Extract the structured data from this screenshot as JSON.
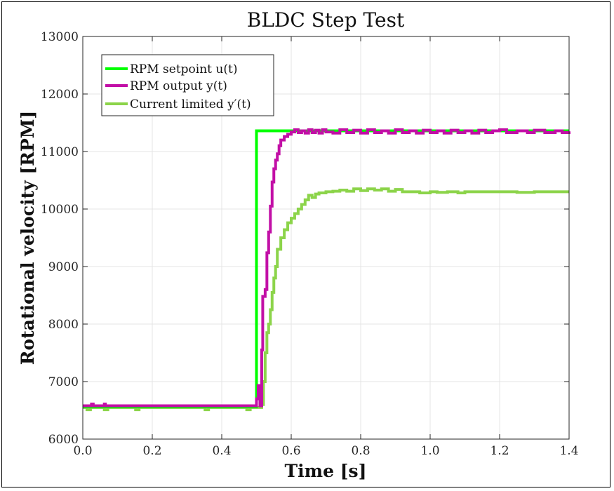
{
  "chart_data": {
    "type": "line",
    "title": "BLDC Step Test",
    "xlabel": "Time [s]",
    "ylabel": "Rotational velocity [RPM]",
    "xlim": [
      0,
      1.4
    ],
    "ylim": [
      6000,
      13000
    ],
    "xticks": [
      "0.0",
      "0.2",
      "0.4",
      "0.6",
      "0.8",
      "1.0",
      "1.2",
      "1.4"
    ],
    "yticks": [
      "6000",
      "7000",
      "8000",
      "9000",
      "10000",
      "11000",
      "12000",
      "13000"
    ],
    "grid": true,
    "legend_position": "top-left",
    "series": [
      {
        "name": "RPM setpoint u(t)",
        "color": "#00ff00",
        "width": 4,
        "points": [
          [
            0,
            6560
          ],
          [
            0.5,
            6560
          ],
          [
            0.5,
            11360
          ],
          [
            1.4,
            11360
          ]
        ]
      },
      {
        "name": "RPM output y(t)",
        "color": "#c20fa6",
        "width": 4,
        "points": [
          [
            0,
            6580
          ],
          [
            0.02,
            6580
          ],
          [
            0.025,
            6610
          ],
          [
            0.03,
            6580
          ],
          [
            0.06,
            6580
          ],
          [
            0.062,
            6610
          ],
          [
            0.065,
            6580
          ],
          [
            0.495,
            6580
          ],
          [
            0.5,
            6700
          ],
          [
            0.505,
            6930
          ],
          [
            0.51,
            6580
          ],
          [
            0.512,
            6580
          ],
          [
            0.515,
            7550
          ],
          [
            0.518,
            8480
          ],
          [
            0.525,
            8600
          ],
          [
            0.53,
            9240
          ],
          [
            0.535,
            9600
          ],
          [
            0.54,
            10050
          ],
          [
            0.545,
            10470
          ],
          [
            0.55,
            10700
          ],
          [
            0.555,
            10850
          ],
          [
            0.56,
            10960
          ],
          [
            0.565,
            11100
          ],
          [
            0.57,
            11200
          ],
          [
            0.58,
            11260
          ],
          [
            0.59,
            11300
          ],
          [
            0.6,
            11340
          ],
          [
            0.61,
            11380
          ],
          [
            0.62,
            11330
          ],
          [
            0.63,
            11360
          ],
          [
            0.64,
            11320
          ],
          [
            0.65,
            11380
          ],
          [
            0.66,
            11330
          ],
          [
            0.67,
            11370
          ],
          [
            0.68,
            11320
          ],
          [
            0.69,
            11380
          ],
          [
            0.7,
            11340
          ],
          [
            0.72,
            11320
          ],
          [
            0.74,
            11380
          ],
          [
            0.76,
            11330
          ],
          [
            0.78,
            11370
          ],
          [
            0.8,
            11320
          ],
          [
            0.82,
            11380
          ],
          [
            0.84,
            11330
          ],
          [
            0.86,
            11360
          ],
          [
            0.88,
            11320
          ],
          [
            0.9,
            11380
          ],
          [
            0.92,
            11330
          ],
          [
            0.94,
            11360
          ],
          [
            0.96,
            11320
          ],
          [
            0.98,
            11370
          ],
          [
            1.0,
            11330
          ],
          [
            1.02,
            11360
          ],
          [
            1.04,
            11320
          ],
          [
            1.06,
            11370
          ],
          [
            1.08,
            11330
          ],
          [
            1.1,
            11360
          ],
          [
            1.12,
            11320
          ],
          [
            1.14,
            11370
          ],
          [
            1.16,
            11330
          ],
          [
            1.18,
            11360
          ],
          [
            1.2,
            11380
          ],
          [
            1.22,
            11330
          ],
          [
            1.25,
            11360
          ],
          [
            1.28,
            11330
          ],
          [
            1.3,
            11370
          ],
          [
            1.33,
            11330
          ],
          [
            1.36,
            11360
          ],
          [
            1.38,
            11330
          ],
          [
            1.4,
            11350
          ]
        ]
      },
      {
        "name": "Current limited y′(t)",
        "color": "#8cd44a",
        "width": 4,
        "points": [
          [
            0,
            6550
          ],
          [
            0.01,
            6550
          ],
          [
            0.012,
            6510
          ],
          [
            0.02,
            6510
          ],
          [
            0.022,
            6550
          ],
          [
            0.06,
            6550
          ],
          [
            0.062,
            6510
          ],
          [
            0.07,
            6510
          ],
          [
            0.072,
            6550
          ],
          [
            0.15,
            6550
          ],
          [
            0.152,
            6510
          ],
          [
            0.16,
            6510
          ],
          [
            0.162,
            6550
          ],
          [
            0.35,
            6550
          ],
          [
            0.352,
            6510
          ],
          [
            0.36,
            6510
          ],
          [
            0.362,
            6550
          ],
          [
            0.47,
            6550
          ],
          [
            0.472,
            6510
          ],
          [
            0.48,
            6510
          ],
          [
            0.482,
            6550
          ],
          [
            0.51,
            6550
          ],
          [
            0.515,
            6600
          ],
          [
            0.52,
            7000
          ],
          [
            0.525,
            7500
          ],
          [
            0.53,
            7850
          ],
          [
            0.535,
            8000
          ],
          [
            0.54,
            8250
          ],
          [
            0.545,
            8550
          ],
          [
            0.55,
            8800
          ],
          [
            0.555,
            9000
          ],
          [
            0.56,
            9300
          ],
          [
            0.57,
            9500
          ],
          [
            0.58,
            9640
          ],
          [
            0.59,
            9760
          ],
          [
            0.6,
            9840
          ],
          [
            0.61,
            9920
          ],
          [
            0.62,
            10000
          ],
          [
            0.63,
            10080
          ],
          [
            0.64,
            10160
          ],
          [
            0.65,
            10240
          ],
          [
            0.66,
            10200
          ],
          [
            0.67,
            10260
          ],
          [
            0.68,
            10280
          ],
          [
            0.7,
            10300
          ],
          [
            0.72,
            10310
          ],
          [
            0.74,
            10330
          ],
          [
            0.76,
            10310
          ],
          [
            0.78,
            10350
          ],
          [
            0.8,
            10320
          ],
          [
            0.82,
            10350
          ],
          [
            0.84,
            10330
          ],
          [
            0.86,
            10350
          ],
          [
            0.88,
            10310
          ],
          [
            0.9,
            10340
          ],
          [
            0.92,
            10300
          ],
          [
            0.95,
            10300
          ],
          [
            0.97,
            10280
          ],
          [
            1.0,
            10300
          ],
          [
            1.02,
            10290
          ],
          [
            1.05,
            10300
          ],
          [
            1.08,
            10280
          ],
          [
            1.1,
            10300
          ],
          [
            1.15,
            10300
          ],
          [
            1.2,
            10300
          ],
          [
            1.25,
            10290
          ],
          [
            1.3,
            10300
          ],
          [
            1.35,
            10300
          ],
          [
            1.4,
            10300
          ]
        ]
      }
    ]
  }
}
